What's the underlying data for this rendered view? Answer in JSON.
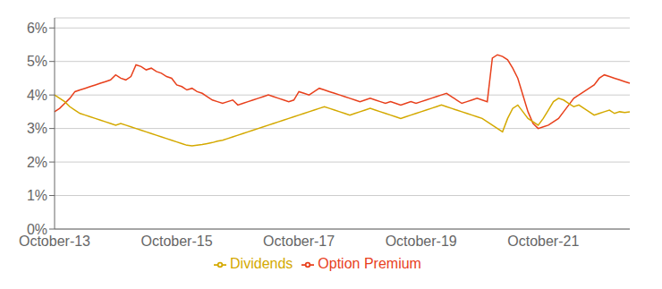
{
  "chart_data": {
    "type": "line",
    "categories": [
      "October-13",
      null,
      null,
      null,
      null,
      null,
      null,
      null,
      null,
      null,
      null,
      null,
      null,
      null,
      null,
      null,
      null,
      null,
      null,
      null,
      null,
      null,
      null,
      null,
      "October-15",
      null,
      null,
      null,
      null,
      null,
      null,
      null,
      null,
      null,
      null,
      null,
      null,
      null,
      null,
      null,
      null,
      null,
      null,
      null,
      null,
      null,
      null,
      null,
      "October-17",
      null,
      null,
      null,
      null,
      null,
      null,
      null,
      null,
      null,
      null,
      null,
      null,
      null,
      null,
      null,
      null,
      null,
      null,
      null,
      null,
      null,
      null,
      null,
      "October-19",
      null,
      null,
      null,
      null,
      null,
      null,
      null,
      null,
      null,
      null,
      null,
      null,
      null,
      null,
      null,
      null,
      null,
      null,
      null,
      null,
      null,
      null,
      null,
      "October-21",
      null,
      null,
      null,
      null,
      null,
      null,
      null,
      null,
      null,
      null,
      null,
      null,
      null,
      null,
      null,
      null,
      null
    ],
    "series": [
      {
        "name": "Option Premium",
        "color": "#E8401C",
        "values": [
          3.5,
          3.6,
          3.75,
          3.9,
          4.1,
          4.15,
          4.2,
          4.25,
          4.3,
          4.35,
          4.4,
          4.45,
          4.6,
          4.5,
          4.45,
          4.55,
          4.9,
          4.85,
          4.75,
          4.8,
          4.7,
          4.65,
          4.55,
          4.5,
          4.3,
          4.25,
          4.15,
          4.2,
          4.1,
          4.05,
          3.95,
          3.85,
          3.8,
          3.75,
          3.8,
          3.85,
          3.7,
          3.75,
          3.8,
          3.85,
          3.9,
          3.95,
          4.0,
          3.95,
          3.9,
          3.85,
          3.8,
          3.85,
          4.1,
          4.05,
          4.0,
          4.1,
          4.2,
          4.15,
          4.1,
          4.05,
          4.0,
          3.95,
          3.9,
          3.85,
          3.8,
          3.85,
          3.9,
          3.85,
          3.8,
          3.75,
          3.8,
          3.75,
          3.7,
          3.75,
          3.8,
          3.75,
          3.8,
          3.85,
          3.9,
          3.95,
          4.0,
          4.05,
          3.95,
          3.85,
          3.75,
          3.8,
          3.85,
          3.9,
          3.85,
          3.8,
          5.1,
          5.2,
          5.15,
          5.05,
          4.8,
          4.5,
          4.0,
          3.5,
          3.15,
          3.0,
          3.05,
          3.1,
          3.2,
          3.3,
          3.5,
          3.7,
          3.9,
          4.0,
          4.1,
          4.2,
          4.3,
          4.5,
          4.6,
          4.55,
          4.5,
          4.45,
          4.4,
          4.35
        ]
      },
      {
        "name": "Dividends",
        "color": "#D4A900",
        "values": [
          4.0,
          3.9,
          3.8,
          3.65,
          3.55,
          3.45,
          3.4,
          3.35,
          3.3,
          3.25,
          3.2,
          3.15,
          3.1,
          3.15,
          3.1,
          3.05,
          3.0,
          2.95,
          2.9,
          2.85,
          2.8,
          2.75,
          2.7,
          2.65,
          2.6,
          2.55,
          2.5,
          2.48,
          2.5,
          2.52,
          2.55,
          2.58,
          2.62,
          2.65,
          2.7,
          2.75,
          2.8,
          2.85,
          2.9,
          2.95,
          3.0,
          3.05,
          3.1,
          3.15,
          3.2,
          3.25,
          3.3,
          3.35,
          3.4,
          3.45,
          3.5,
          3.55,
          3.6,
          3.65,
          3.6,
          3.55,
          3.5,
          3.45,
          3.4,
          3.45,
          3.5,
          3.55,
          3.6,
          3.55,
          3.5,
          3.45,
          3.4,
          3.35,
          3.3,
          3.35,
          3.4,
          3.45,
          3.5,
          3.55,
          3.6,
          3.65,
          3.7,
          3.65,
          3.6,
          3.55,
          3.5,
          3.45,
          3.4,
          3.35,
          3.3,
          3.2,
          3.1,
          3.0,
          2.9,
          3.3,
          3.6,
          3.7,
          3.5,
          3.3,
          3.2,
          3.1,
          3.3,
          3.55,
          3.8,
          3.9,
          3.85,
          3.75,
          3.65,
          3.7,
          3.6,
          3.5,
          3.4,
          3.45,
          3.5,
          3.55,
          3.45,
          3.5,
          3.48,
          3.5
        ]
      }
    ],
    "ylim": [
      0,
      6.3
    ],
    "yticks": [
      {
        "value": 0,
        "label": "0%"
      },
      {
        "value": 1,
        "label": "1%"
      },
      {
        "value": 2,
        "label": "2%"
      },
      {
        "value": 3,
        "label": "3%"
      },
      {
        "value": 4,
        "label": "4%"
      },
      {
        "value": 5,
        "label": "5%"
      },
      {
        "value": 6,
        "label": "6%"
      }
    ],
    "grid": true,
    "legend": "bottom"
  }
}
